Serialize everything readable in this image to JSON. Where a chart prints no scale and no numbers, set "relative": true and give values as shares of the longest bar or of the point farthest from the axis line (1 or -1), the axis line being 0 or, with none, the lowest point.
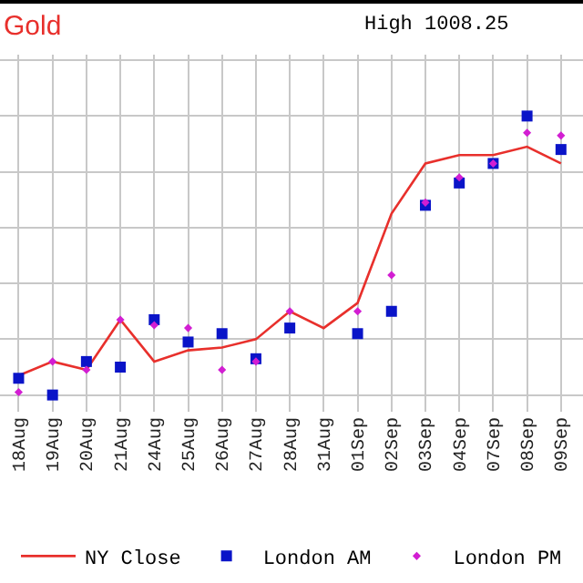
{
  "chart_data": {
    "type": "line",
    "title": "Gold",
    "subtitle": "High 1008.25",
    "categories": [
      "18Aug",
      "19Aug",
      "20Aug",
      "21Aug",
      "24Aug",
      "25Aug",
      "26Aug",
      "27Aug",
      "28Aug",
      "31Aug",
      "01Sep",
      "02Sep",
      "03Sep",
      "04Sep",
      "07Sep",
      "08Sep",
      "09Sep"
    ],
    "relative": true,
    "grid": true,
    "legend": "bottom",
    "series": [
      {
        "name": "NY Close",
        "color": "#e8302c",
        "marker": "none",
        "line_style": "solid",
        "values": [
          0.07,
          0.12,
          0.09,
          0.27,
          0.12,
          0.16,
          0.17,
          0.2,
          0.3,
          0.24,
          0.33,
          0.65,
          0.83,
          0.86,
          0.86,
          0.89,
          0.83
        ]
      },
      {
        "name": "London AM",
        "type": "scatter",
        "color": "#0a14c8",
        "marker": "square",
        "values": [
          0.06,
          0,
          0.12,
          0.1,
          0.27,
          0.19,
          0.22,
          0.13,
          0.24,
          null,
          0.22,
          0.3,
          0.68,
          0.76,
          0.83,
          1,
          0.88
        ]
      },
      {
        "name": "London PM",
        "type": "scatter",
        "color": "#d21ed2",
        "marker": "diamond",
        "values": [
          0.01,
          0.12,
          0.09,
          0.27,
          0.25,
          0.24,
          0.09,
          0.12,
          0.3,
          null,
          0.3,
          0.43,
          0.69,
          0.78,
          0.83,
          0.94,
          0.93
        ]
      }
    ]
  }
}
